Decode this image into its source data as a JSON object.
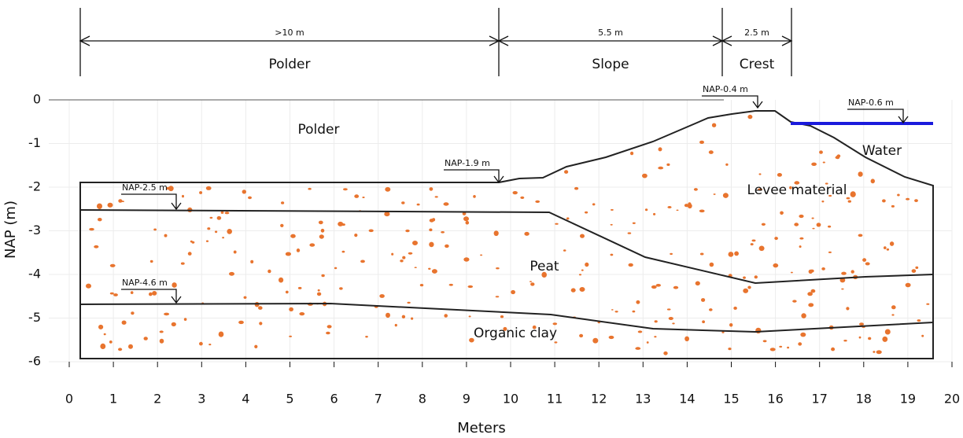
{
  "dimensions": [
    {
      "width": ">10 m",
      "label": "Polder"
    },
    {
      "width": "5.5 m",
      "label": "Slope"
    },
    {
      "width": "2.5 m",
      "label": "Crest"
    }
  ],
  "levels": [
    "NAP-0.4 m",
    "NAP-0.6 m",
    "NAP-1.9 m",
    "NAP-2.5 m",
    "NAP-4.6 m"
  ],
  "regions": [
    "Polder",
    "Levee material",
    "Water",
    "Peat",
    "Organic clay"
  ],
  "axes": {
    "x": {
      "label": "Meters",
      "ticks": [
        0,
        1,
        2,
        3,
        4,
        5,
        6,
        7,
        8,
        9,
        10,
        11,
        12,
        13,
        14,
        15,
        16,
        17,
        18,
        19,
        20
      ]
    },
    "y": {
      "label": "NAP (m)",
      "ticks": [
        0,
        -1,
        -2,
        -3,
        -4,
        -5,
        -6
      ]
    }
  }
}
